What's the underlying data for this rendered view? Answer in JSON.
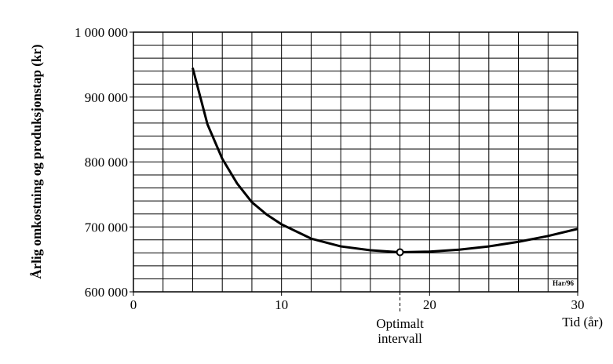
{
  "chart_data": {
    "type": "line",
    "y_label": "Årlig omkostning og produksjonstap (kr)",
    "x_label": "Tid (år)",
    "credit": "Har/96",
    "annotation": [
      "Optimalt",
      "intervall"
    ],
    "x": [
      4,
      5,
      6,
      7,
      8,
      9,
      10,
      12,
      14,
      16,
      18,
      20,
      22,
      24,
      26,
      28,
      30
    ],
    "series": [
      {
        "color": "#000000",
        "values": [
          945000,
          858000,
          805000,
          767000,
          738000,
          719000,
          704000,
          682000,
          670000,
          664000,
          661000,
          662000,
          665000,
          670000,
          677000,
          686000,
          697000
        ]
      }
    ],
    "optimum": {
      "x": 18,
      "y": 661000
    },
    "xlim": [
      0,
      30
    ],
    "ylim": [
      600000,
      1000000
    ],
    "xticks": [
      0,
      10,
      20,
      30
    ],
    "yticks": [
      {
        "value": 600000,
        "label": "600 000"
      },
      {
        "value": 700000,
        "label": "700 000"
      },
      {
        "value": 800000,
        "label": "800 000"
      },
      {
        "value": 900000,
        "label": "900 000"
      },
      {
        "value": 1000000,
        "label": "1 000 000"
      }
    ],
    "x_grid": [
      0,
      2,
      4,
      6,
      8,
      10,
      12,
      14,
      16,
      18,
      20,
      22,
      24,
      26,
      28,
      30
    ],
    "y_grid": [
      600000,
      620000,
      640000,
      660000,
      680000,
      700000,
      720000,
      740000,
      760000,
      780000,
      800000,
      820000,
      840000,
      860000,
      880000,
      900000,
      920000,
      940000,
      960000,
      980000,
      1000000
    ],
    "grid": true
  }
}
